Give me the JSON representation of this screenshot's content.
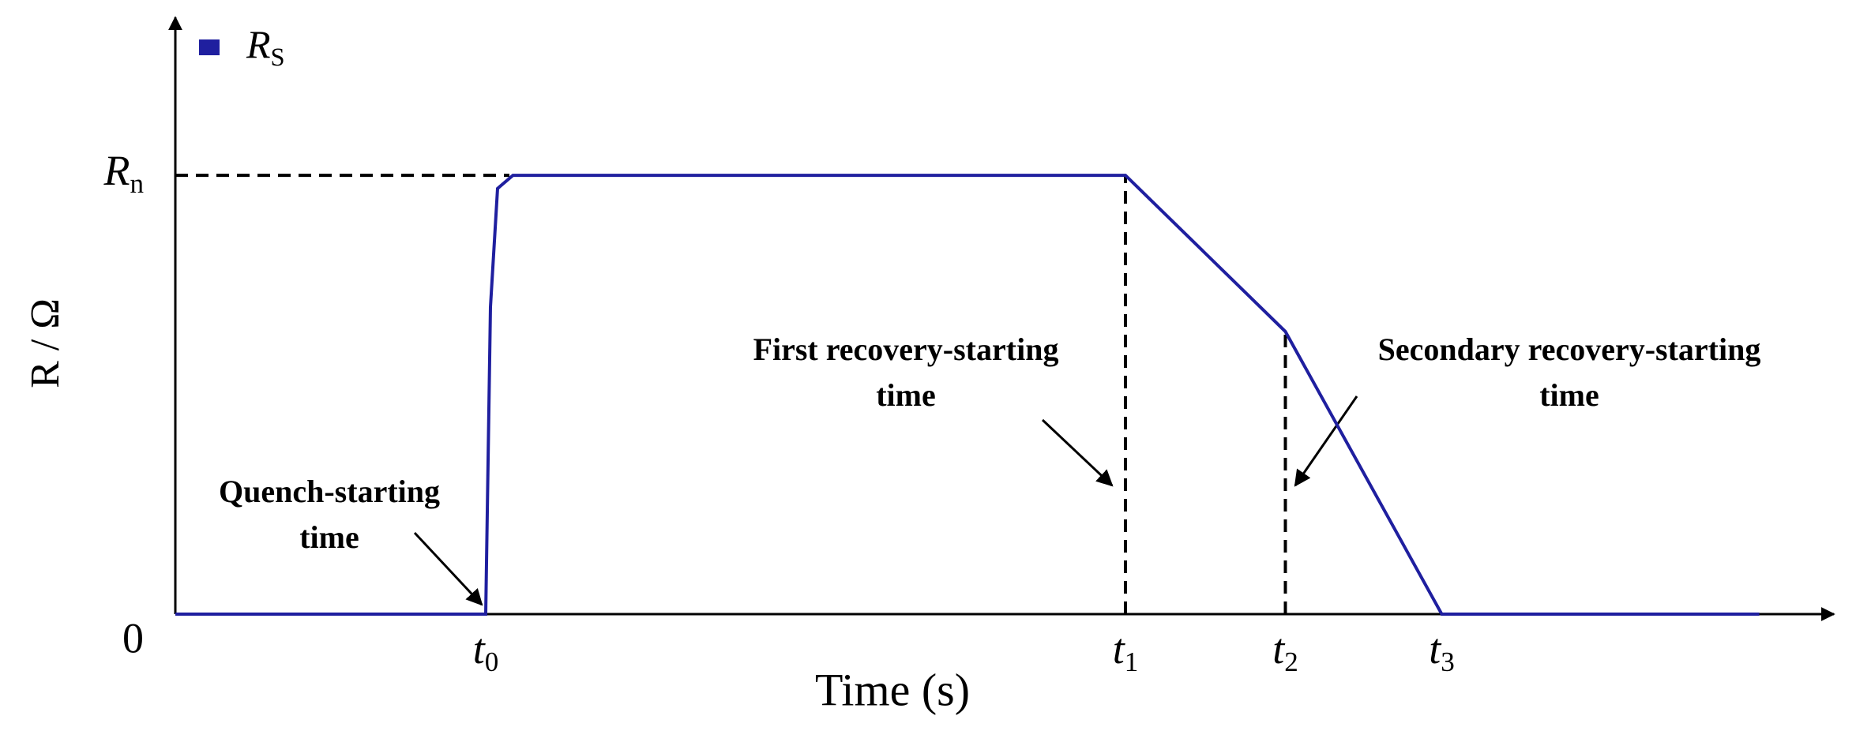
{
  "chart_data": {
    "type": "line",
    "x_label": "Time (s)",
    "y_label": "R / Ω",
    "x": [
      0,
      262,
      266,
      272,
      285,
      802,
      937,
      1069,
      1337
    ],
    "series": [
      {
        "name": "RS",
        "color": "#1f1f9f",
        "values": [
          0,
          0,
          0.7,
          0.97,
          1,
          1,
          0.644,
          0,
          0
        ]
      }
    ],
    "xlim": [
      0,
      1400
    ],
    "ylim": [
      0,
      1.36
    ],
    "xticks": [
      {
        "value": 262,
        "label": "t0"
      },
      {
        "value": 802,
        "label": "t1"
      },
      {
        "value": 937,
        "label": "t2"
      },
      {
        "value": 1069,
        "label": "t3"
      }
    ],
    "yticks": [
      0,
      {
        "value": 1,
        "label": "Rn"
      }
    ],
    "annotations": [
      {
        "lines": [
          "Quench-starting",
          "time"
        ]
      },
      {
        "lines": [
          "First recovery-starting",
          "time"
        ]
      },
      {
        "lines": [
          "Secondary recovery-starting",
          "time"
        ]
      }
    ],
    "legend": "top-left"
  }
}
